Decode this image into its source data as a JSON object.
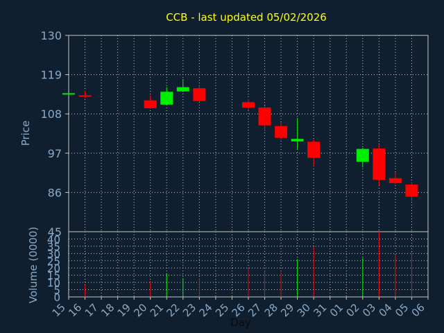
{
  "chart_data": {
    "type": "candlestick",
    "title": "CCB - last updated 05/02/2026",
    "ylabel": "Price",
    "volume_label": "Volume (0000)",
    "xlabel": "Day",
    "ylim": [
      75,
      130
    ],
    "y_ticks": [
      "130",
      "119",
      "108",
      "97",
      "86"
    ],
    "y_bottom_label": "45",
    "volume_ticks": [
      "40",
      "35",
      "30",
      "25",
      "20",
      "15",
      "10",
      "5",
      "0"
    ],
    "volume_max": 45,
    "x_ticks": [
      "15",
      "16",
      "17",
      "18",
      "19",
      "20",
      "21",
      "22",
      "23",
      "24",
      "25",
      "26",
      "27",
      "28",
      "29",
      "30",
      "31",
      "01",
      "02",
      "03",
      "04",
      "05",
      "06"
    ],
    "colors": {
      "up": "#00ee00",
      "down": "#ff0000",
      "background": "#0f1f30",
      "title": "#ffff00",
      "label": "#8aaac8"
    },
    "candles": [
      {
        "day": "15",
        "open": 113.5,
        "high": 113.8,
        "low": 113.4,
        "close": 113.8,
        "volume": 0
      },
      {
        "day": "16",
        "open": 113.2,
        "high": 114.5,
        "low": 112.4,
        "close": 112.9,
        "volume": 8
      },
      {
        "day": "20",
        "open": 111.8,
        "high": 113.2,
        "low": 109.4,
        "close": 109.6,
        "volume": 11
      },
      {
        "day": "21",
        "open": 110.6,
        "high": 115.5,
        "low": 110.4,
        "close": 114.2,
        "volume": 16
      },
      {
        "day": "22",
        "open": 114.3,
        "high": 117.8,
        "low": 114.1,
        "close": 115.5,
        "volume": 13
      },
      {
        "day": "23",
        "open": 115.2,
        "high": 116.2,
        "low": 111.3,
        "close": 111.6,
        "volume": 13
      },
      {
        "day": "26",
        "open": 111.3,
        "high": 112.1,
        "low": 109.1,
        "close": 109.8,
        "volume": 19
      },
      {
        "day": "27",
        "open": 109.8,
        "high": 110.4,
        "low": 103.1,
        "close": 104.8,
        "volume": 18
      },
      {
        "day": "28",
        "open": 104.6,
        "high": 105.6,
        "low": 100.8,
        "close": 101.3,
        "volume": 17
      },
      {
        "day": "29",
        "open": 100.3,
        "high": 106.9,
        "low": 98.1,
        "close": 101.0,
        "volume": 26
      },
      {
        "day": "30",
        "open": 100.2,
        "high": 100.9,
        "low": 93.3,
        "close": 95.7,
        "volume": 35
      },
      {
        "day": "02",
        "open": 94.6,
        "high": 98.5,
        "low": 93.0,
        "close": 98.2,
        "volume": 27
      },
      {
        "day": "03",
        "open": 98.3,
        "high": 99.4,
        "low": 87.9,
        "close": 89.5,
        "volume": 45
      },
      {
        "day": "04",
        "open": 90.0,
        "high": 91.7,
        "low": 88.3,
        "close": 88.6,
        "volume": 29
      },
      {
        "day": "05",
        "open": 88.2,
        "high": 88.9,
        "low": 83.6,
        "close": 84.8,
        "volume": 31
      }
    ]
  }
}
